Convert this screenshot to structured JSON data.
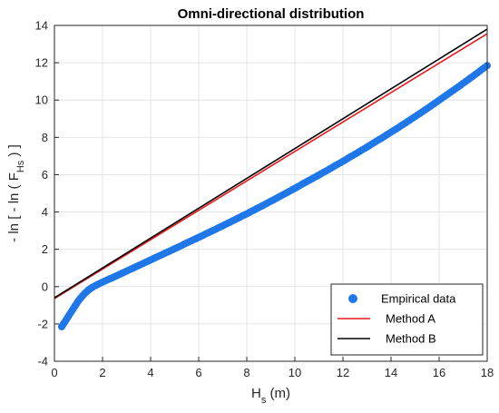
{
  "chart_data": {
    "type": "scatter",
    "title": "Omni-directional distribution",
    "xlabel": {
      "main": "H",
      "sub": "s",
      "suffix": " (m)"
    },
    "ylabel": {
      "prefix": "- ln [ - ln ( F",
      "sub": "Hs",
      "suffix": " ) ]"
    },
    "xlim": [
      0,
      18
    ],
    "ylim": [
      -4,
      14
    ],
    "x_ticks": [
      0,
      2,
      4,
      6,
      8,
      10,
      12,
      14,
      16,
      18
    ],
    "y_ticks": [
      -4,
      -2,
      0,
      2,
      4,
      6,
      8,
      10,
      12,
      14
    ],
    "grid": true,
    "legend_position": "bottom-right",
    "series": [
      {
        "name": "Empirical data",
        "kind": "scatter",
        "color": "#1f77e8",
        "points": [
          [
            0.3,
            -2.15
          ],
          [
            0.35,
            -2.05
          ],
          [
            0.4,
            -1.95
          ],
          [
            0.45,
            -1.85
          ],
          [
            0.5,
            -1.75
          ],
          [
            0.55,
            -1.65
          ],
          [
            0.6,
            -1.55
          ],
          [
            0.65,
            -1.45
          ],
          [
            0.7,
            -1.35
          ],
          [
            0.75,
            -1.25
          ],
          [
            0.8,
            -1.15
          ],
          [
            0.85,
            -1.05
          ],
          [
            0.9,
            -0.95
          ],
          [
            0.95,
            -0.85
          ],
          [
            1.0,
            -0.75
          ],
          [
            1.05,
            -0.67
          ],
          [
            1.1,
            -0.6
          ],
          [
            1.15,
            -0.52
          ],
          [
            1.2,
            -0.45
          ],
          [
            1.25,
            -0.38
          ],
          [
            1.3,
            -0.32
          ],
          [
            1.35,
            -0.26
          ],
          [
            1.4,
            -0.2
          ],
          [
            1.45,
            -0.15
          ],
          [
            1.5,
            -0.1
          ],
          [
            1.55,
            -0.06
          ],
          [
            1.6,
            -0.02
          ],
          [
            1.7,
            0.05
          ],
          [
            1.8,
            0.12
          ],
          [
            1.9,
            0.18
          ],
          [
            2.0,
            0.24
          ],
          [
            2.1,
            0.3
          ],
          [
            2.2,
            0.36
          ],
          [
            2.3,
            0.42
          ],
          [
            2.4,
            0.47
          ],
          [
            2.5,
            0.53
          ],
          [
            2.6,
            0.59
          ],
          [
            2.7,
            0.65
          ],
          [
            2.8,
            0.71
          ],
          [
            2.9,
            0.77
          ],
          [
            3.0,
            0.83
          ],
          [
            3.1,
            0.89
          ],
          [
            3.2,
            0.95
          ],
          [
            3.3,
            1.01
          ],
          [
            3.4,
            1.07
          ],
          [
            3.5,
            1.13
          ],
          [
            3.6,
            1.19
          ],
          [
            3.7,
            1.25
          ],
          [
            3.8,
            1.31
          ],
          [
            3.9,
            1.37
          ],
          [
            4.0,
            1.43
          ],
          [
            4.1,
            1.49
          ],
          [
            4.2,
            1.55
          ],
          [
            4.3,
            1.61
          ],
          [
            4.4,
            1.67
          ],
          [
            4.5,
            1.73
          ],
          [
            4.6,
            1.79
          ],
          [
            4.7,
            1.85
          ],
          [
            4.8,
            1.91
          ],
          [
            4.9,
            1.97
          ],
          [
            5.0,
            2.03
          ],
          [
            5.1,
            2.09
          ],
          [
            5.2,
            2.15
          ],
          [
            5.3,
            2.21
          ],
          [
            5.4,
            2.28
          ],
          [
            5.5,
            2.34
          ],
          [
            5.6,
            2.4
          ],
          [
            5.7,
            2.46
          ],
          [
            5.8,
            2.52
          ],
          [
            5.9,
            2.58
          ],
          [
            6.0,
            2.64
          ],
          [
            6.1,
            2.7
          ],
          [
            6.2,
            2.76
          ],
          [
            6.3,
            2.83
          ],
          [
            6.4,
            2.89
          ],
          [
            6.5,
            2.95
          ],
          [
            6.6,
            3.01
          ],
          [
            6.7,
            3.07
          ],
          [
            6.8,
            3.14
          ],
          [
            6.9,
            3.2
          ],
          [
            7.0,
            3.26
          ],
          [
            7.1,
            3.33
          ],
          [
            7.2,
            3.39
          ],
          [
            7.3,
            3.45
          ],
          [
            7.4,
            3.52
          ],
          [
            7.5,
            3.58
          ],
          [
            7.6,
            3.65
          ],
          [
            7.7,
            3.71
          ],
          [
            7.8,
            3.78
          ],
          [
            7.9,
            3.84
          ],
          [
            8.0,
            3.9
          ],
          [
            8.1,
            3.97
          ],
          [
            8.2,
            4.04
          ],
          [
            8.3,
            4.1
          ],
          [
            8.4,
            4.17
          ],
          [
            8.5,
            4.24
          ],
          [
            8.6,
            4.3
          ],
          [
            8.7,
            4.37
          ],
          [
            8.8,
            4.44
          ],
          [
            8.9,
            4.51
          ],
          [
            9.0,
            4.58
          ],
          [
            9.1,
            4.64
          ],
          [
            9.2,
            4.71
          ],
          [
            9.3,
            4.78
          ],
          [
            9.4,
            4.85
          ],
          [
            9.5,
            4.92
          ],
          [
            9.6,
            4.99
          ],
          [
            9.7,
            5.06
          ],
          [
            9.8,
            5.13
          ],
          [
            9.9,
            5.2
          ],
          [
            10.0,
            5.27
          ],
          [
            10.1,
            5.34
          ],
          [
            10.2,
            5.41
          ],
          [
            10.3,
            5.49
          ],
          [
            10.4,
            5.56
          ],
          [
            10.5,
            5.63
          ],
          [
            10.6,
            5.7
          ],
          [
            10.7,
            5.77
          ],
          [
            10.8,
            5.84
          ],
          [
            10.9,
            5.91
          ],
          [
            11.0,
            5.98
          ],
          [
            11.1,
            6.06
          ],
          [
            11.2,
            6.13
          ],
          [
            11.3,
            6.2
          ],
          [
            11.4,
            6.27
          ],
          [
            11.5,
            6.35
          ],
          [
            11.6,
            6.42
          ],
          [
            11.7,
            6.5
          ],
          [
            11.8,
            6.57
          ],
          [
            11.9,
            6.64
          ],
          [
            12.0,
            6.72
          ],
          [
            12.1,
            6.79
          ],
          [
            12.2,
            6.87
          ],
          [
            12.3,
            6.95
          ],
          [
            12.4,
            7.02
          ],
          [
            12.5,
            7.1
          ],
          [
            12.6,
            7.17
          ],
          [
            12.7,
            7.25
          ],
          [
            12.8,
            7.33
          ],
          [
            12.9,
            7.4
          ],
          [
            13.0,
            7.48
          ],
          [
            13.1,
            7.56
          ],
          [
            13.2,
            7.64
          ],
          [
            13.3,
            7.72
          ],
          [
            13.4,
            7.8
          ],
          [
            13.5,
            7.88
          ],
          [
            13.6,
            7.95
          ],
          [
            13.7,
            8.03
          ],
          [
            13.8,
            8.12
          ],
          [
            13.9,
            8.2
          ],
          [
            14.0,
            8.28
          ],
          [
            14.1,
            8.36
          ],
          [
            14.2,
            8.44
          ],
          [
            14.3,
            8.52
          ],
          [
            14.4,
            8.61
          ],
          [
            14.5,
            8.69
          ],
          [
            14.6,
            8.77
          ],
          [
            14.7,
            8.86
          ],
          [
            14.8,
            8.94
          ],
          [
            14.9,
            9.03
          ],
          [
            15.0,
            9.11
          ],
          [
            15.1,
            9.2
          ],
          [
            15.2,
            9.28
          ],
          [
            15.3,
            9.37
          ],
          [
            15.4,
            9.46
          ],
          [
            15.5,
            9.54
          ],
          [
            15.6,
            9.63
          ],
          [
            15.7,
            9.72
          ],
          [
            15.8,
            9.81
          ],
          [
            15.9,
            9.9
          ],
          [
            16.0,
            9.99
          ],
          [
            16.1,
            10.08
          ],
          [
            16.2,
            10.17
          ],
          [
            16.3,
            10.26
          ],
          [
            16.4,
            10.35
          ],
          [
            16.5,
            10.44
          ],
          [
            16.6,
            10.53
          ],
          [
            16.7,
            10.62
          ],
          [
            16.8,
            10.71
          ],
          [
            16.9,
            10.8
          ],
          [
            17.0,
            10.9
          ],
          [
            17.1,
            10.99
          ],
          [
            17.2,
            11.08
          ],
          [
            17.3,
            11.18
          ],
          [
            17.4,
            11.27
          ],
          [
            17.5,
            11.37
          ],
          [
            17.6,
            11.46
          ],
          [
            17.7,
            11.56
          ],
          [
            17.8,
            11.66
          ],
          [
            17.9,
            11.75
          ],
          [
            18.0,
            11.85
          ]
        ]
      },
      {
        "name": "Method A",
        "kind": "line",
        "color": "#e8191a",
        "points": [
          [
            0,
            -0.64
          ],
          [
            18,
            13.55
          ]
        ]
      },
      {
        "name": "Method B",
        "kind": "line",
        "color": "#000000",
        "points": [
          [
            0,
            -0.6
          ],
          [
            18,
            13.8
          ]
        ]
      }
    ],
    "legend": [
      {
        "label": "Empirical data"
      },
      {
        "label": "Method A"
      },
      {
        "label": "Method B"
      }
    ]
  }
}
